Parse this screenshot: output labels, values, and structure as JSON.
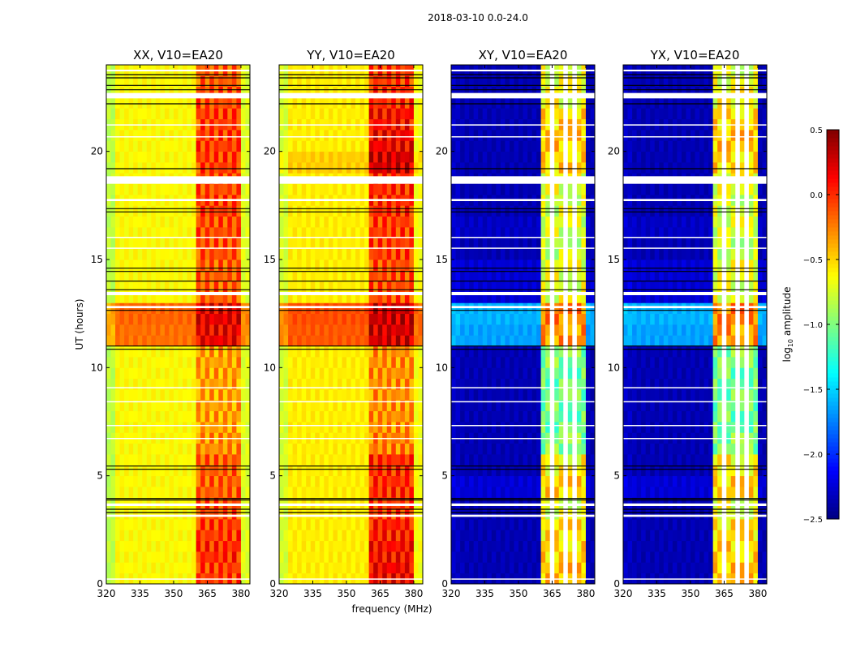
{
  "chart_data": {
    "type": "heatmap",
    "title": "2018-03-10 0.0-24.0",
    "xlabel": "frequency (MHz)",
    "ylabel": "UT (hours)",
    "xlim": [
      320,
      384
    ],
    "ylim": [
      0,
      24
    ],
    "xticks": [
      "320",
      "335",
      "350",
      "365",
      "380"
    ],
    "xtick_values": [
      320,
      335,
      350,
      365,
      380
    ],
    "yticks": [
      "0",
      "5",
      "10",
      "15",
      "20"
    ],
    "ytick_values": [
      0,
      5,
      10,
      15,
      20
    ],
    "freq_step_mhz": 2,
    "time_step_hours": 0.5,
    "colorbar": {
      "label_prefix": "log",
      "label_sub": "10",
      "label_suffix": " amplitude",
      "range": [
        -2.5,
        0.5
      ],
      "ticks": [
        "0.5",
        "0.0",
        "−0.5",
        "−1.0",
        "−1.5",
        "−2.0",
        "−2.5"
      ],
      "tick_values": [
        0.5,
        0.0,
        -0.5,
        -1.0,
        -1.5,
        -2.0,
        -2.5
      ],
      "colormap": "jet"
    },
    "flagged_time_ranges": [
      [
        18.5,
        18.85
      ],
      [
        22.45,
        22.7
      ],
      [
        17.7,
        17.8
      ],
      [
        13.35,
        13.5
      ],
      [
        12.75,
        12.85
      ],
      [
        3.6,
        3.72
      ],
      [
        3.1,
        3.2
      ],
      [
        9.05,
        9.1
      ],
      [
        8.4,
        8.45
      ],
      [
        7.3,
        7.35
      ],
      [
        6.7,
        6.75
      ],
      [
        21.2,
        21.25
      ],
      [
        20.65,
        20.7
      ],
      [
        16.0,
        16.05
      ],
      [
        15.5,
        15.55
      ],
      [
        0.2,
        0.25
      ],
      [
        23.7,
        23.78
      ]
    ],
    "black_line_times": [
      23.55,
      23.4,
      23.05,
      22.85,
      22.2,
      19.2,
      17.35,
      17.2,
      14.6,
      14.45,
      14.0,
      13.6,
      12.65,
      11.0,
      10.85,
      5.45,
      5.3,
      3.95,
      3.88,
      3.45,
      3.3
    ],
    "band_mhz": [
      360,
      380
    ],
    "panels": [
      {
        "title": "XX, V10=EA20",
        "base": -0.62,
        "edge_low": -0.82,
        "band": -0.35,
        "edge_high": -0.72,
        "flagged_channels_mhz": [],
        "hour_offset": [
          0,
          0,
          0,
          0,
          0,
          0,
          0,
          0,
          0,
          0,
          0,
          0.42,
          0.45,
          0,
          0,
          0,
          0,
          0,
          0,
          0,
          0,
          0,
          0,
          0
        ],
        "band_hour_offset": [
          0.3,
          0.35,
          0.3,
          0.25,
          0.2,
          0.2,
          0.05,
          0,
          0,
          0,
          0,
          0.1,
          0.1,
          0.2,
          0.2,
          0.25,
          0.25,
          0.3,
          0.25,
          0.3,
          0.3,
          0.3,
          0.25,
          0.2
        ]
      },
      {
        "title": "YY, V10=EA20",
        "base": -0.58,
        "edge_low": -0.75,
        "band": -0.3,
        "edge_high": -0.65,
        "flagged_channels_mhz": [],
        "hour_offset": [
          0,
          0,
          0,
          0,
          0,
          0,
          0,
          0,
          0,
          0,
          0,
          0.45,
          0.48,
          0,
          0,
          0,
          0,
          0,
          0,
          0.1,
          0,
          0,
          0,
          0
        ],
        "band_hour_offset": [
          0.45,
          0.4,
          0.35,
          0.25,
          0.3,
          0.3,
          0.05,
          0,
          0,
          0,
          0,
          0.1,
          0.1,
          0.2,
          0.2,
          0.25,
          0.25,
          0.3,
          0.3,
          0.45,
          0.45,
          0.4,
          0.3,
          0.25
        ]
      },
      {
        "title": "XY, V10=EA20",
        "base": -2.35,
        "edge_low": -2.3,
        "band": -1.0,
        "edge_high": -2.35,
        "flagged_channels_mhz": [
          364,
          370,
          374
        ],
        "hour_offset": [
          0,
          0,
          0,
          0,
          0.1,
          0,
          0,
          0,
          0,
          0,
          0,
          0.7,
          0.75,
          0.1,
          0.1,
          0,
          0.05,
          0,
          0,
          0,
          0,
          0,
          0,
          0
        ],
        "band_hour_offset": [
          0.55,
          0.5,
          0.45,
          0.3,
          0.4,
          0.4,
          0.0,
          -0.05,
          -0.05,
          -0.05,
          0,
          0,
          0,
          0.2,
          0.2,
          0.2,
          0.2,
          0.25,
          0.3,
          0.5,
          0.55,
          0.5,
          0.35,
          0.3
        ]
      },
      {
        "title": "YX, V10=EA20",
        "base": -2.35,
        "edge_low": -2.3,
        "band": -1.0,
        "edge_high": -2.35,
        "flagged_channels_mhz": [
          364,
          370,
          374
        ],
        "hour_offset": [
          0,
          0,
          0,
          0,
          0.1,
          0,
          0,
          0,
          0,
          0,
          0,
          0.7,
          0.75,
          0.1,
          0.1,
          0,
          0.05,
          0,
          0,
          0,
          0,
          0,
          0,
          0
        ],
        "band_hour_offset": [
          0.55,
          0.5,
          0.45,
          0.3,
          0.4,
          0.4,
          0.0,
          -0.05,
          -0.05,
          -0.05,
          0,
          0,
          0,
          0.2,
          0.2,
          0.2,
          0.2,
          0.25,
          0.3,
          0.5,
          0.55,
          0.5,
          0.35,
          0.3
        ]
      }
    ]
  }
}
